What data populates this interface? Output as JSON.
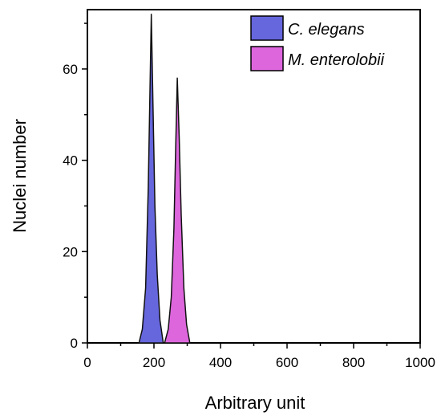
{
  "chart_data": {
    "type": "area",
    "title": "",
    "xlabel": "Arbitrary unit",
    "ylabel": "Nuclei number",
    "xlim": [
      0,
      1000
    ],
    "ylim": [
      0,
      73
    ],
    "x_ticks": [
      0,
      200,
      400,
      600,
      800,
      1000
    ],
    "x_tick_labels": [
      "0",
      "200",
      "400",
      "600",
      "800",
      "1000"
    ],
    "y_ticks": [
      0,
      20,
      40,
      60
    ],
    "y_tick_labels": [
      "0",
      "20",
      "40",
      "60"
    ],
    "grid": false,
    "legend_position": "top-right",
    "series": [
      {
        "name": "C. elegans",
        "color": "#6666dd",
        "x": [
          155,
          165,
          175,
          183,
          188,
          192,
          197,
          203,
          210,
          218,
          228
        ],
        "y": [
          0,
          3,
          12,
          34,
          55,
          72,
          52,
          30,
          15,
          5,
          0
        ]
      },
      {
        "name": "M. enterolobii",
        "color": "#dd66dd",
        "x": [
          232,
          243,
          252,
          260,
          265,
          270,
          276,
          282,
          290,
          298,
          308
        ],
        "y": [
          0,
          3,
          10,
          25,
          42,
          58,
          45,
          28,
          12,
          4,
          0
        ]
      }
    ]
  }
}
